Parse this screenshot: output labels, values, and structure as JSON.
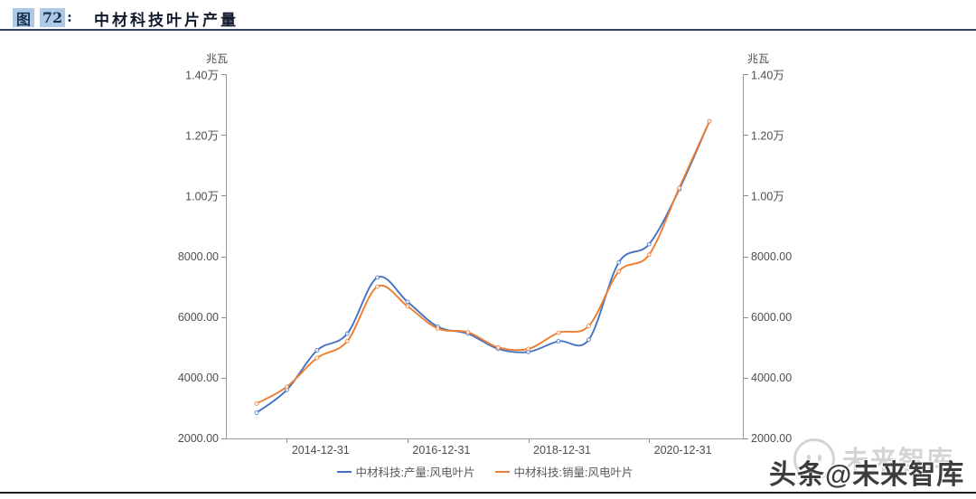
{
  "header": {
    "figure_label": "图",
    "figure_number": "72",
    "colon": ":",
    "title": "中材科技叶片产量"
  },
  "chart_data": {
    "type": "line",
    "title": "中材科技叶片产量",
    "unit_left": "兆瓦",
    "unit_right": "兆瓦",
    "ylim": [
      2000,
      14000
    ],
    "y_tick_values": [
      14000,
      12000,
      10000,
      8000,
      6000,
      4000,
      2000
    ],
    "y_tick_labels": [
      "1.40万",
      "1.20万",
      "1.00万",
      "8000.00",
      "6000.00",
      "4000.00",
      "2000.00"
    ],
    "x_axis_tick_labels": [
      "2014-12-31",
      "2016-12-31",
      "2018-12-31",
      "2020-12-31"
    ],
    "x_label_indices": [
      2,
      6,
      10,
      14
    ],
    "categories": [
      "2013-12-31",
      "2014-06-30",
      "2014-12-31",
      "2015-06-30",
      "2015-12-31",
      "2016-06-30",
      "2016-12-31",
      "2017-06-30",
      "2017-12-31",
      "2018-06-30",
      "2018-12-31",
      "2019-06-30",
      "2019-12-31",
      "2020-06-30",
      "2020-12-31",
      "2021-06-30"
    ],
    "series": [
      {
        "name": "中材科技:产量:风电叶片",
        "color": "#4472c4",
        "values": [
          2850,
          3600,
          4900,
          5450,
          7300,
          6500,
          5680,
          5450,
          4950,
          4850,
          5200,
          5250,
          7800,
          8400,
          10200,
          12450
        ]
      },
      {
        "name": "中材科技:销量:风电叶片",
        "color": "#ed7d31",
        "values": [
          3150,
          3700,
          4650,
          5200,
          7000,
          6350,
          5620,
          5500,
          5000,
          4950,
          5480,
          5700,
          7500,
          8050,
          10250,
          12450
        ]
      }
    ],
    "legend_position": "bottom",
    "grid": false
  },
  "watermark": {
    "dark_text": "头条@未来智库",
    "light_text": "未来智库"
  },
  "colors": {
    "series_production": "#4472c4",
    "series_sales": "#ed7d31",
    "axis": "#9a9a9a",
    "tick_text": "#4d4d4d",
    "header_chip_bg": "#aec9e5",
    "header_rule": "#31455c"
  }
}
